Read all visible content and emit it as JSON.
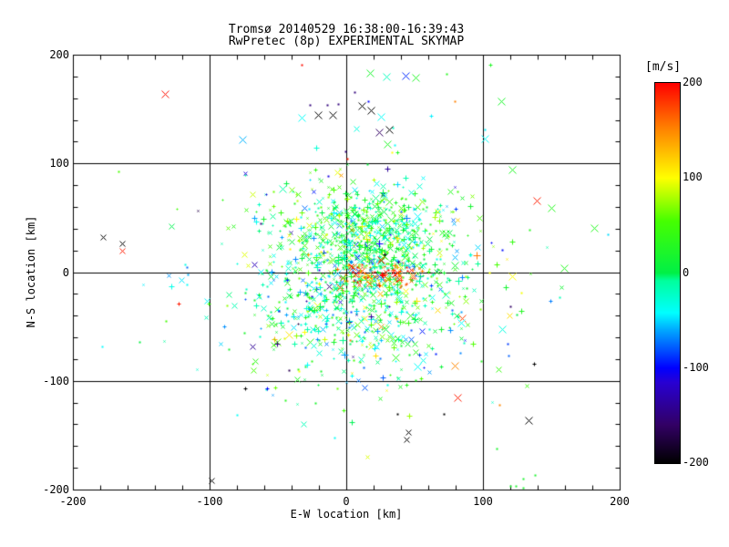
{
  "chart_data": {
    "type": "scatter",
    "title": "Tromsø 20140529 16:38:00-16:39:43",
    "subtitle": "RwPretec (8p) EXPERIMENTAL SKYMAP",
    "xlabel": "E-W location [km]",
    "ylabel": "N-S location [km]",
    "xlim": [
      -200,
      200
    ],
    "ylim": [
      -200,
      200
    ],
    "xticks": [
      "-200",
      "-100",
      "0",
      "100",
      "200"
    ],
    "yticks": [
      "200",
      "100",
      "0",
      "-100",
      "-200"
    ],
    "xtick_values": [
      -200,
      -100,
      0,
      100,
      200
    ],
    "ytick_values": [
      200,
      100,
      0,
      -100,
      -200
    ],
    "minor_tick_step": 20,
    "grid": true,
    "gridlines_at": [
      -100,
      0,
      100
    ],
    "frame_color": "#000000",
    "background_color": "#ffffff",
    "colorbar": {
      "label": "[m/s]",
      "tick_labels": [
        "200",
        "100",
        "0",
        "-100",
        "-200"
      ],
      "tick_values": [
        200,
        100,
        0,
        -100,
        -200
      ],
      "min": -200,
      "max": 200,
      "stops": [
        {
          "v": -200,
          "color": "#000000"
        },
        {
          "v": -160,
          "color": "#320064"
        },
        {
          "v": -115,
          "color": "#2800d2"
        },
        {
          "v": -100,
          "color": "#0000ff"
        },
        {
          "v": -60,
          "color": "#00a8ff"
        },
        {
          "v": -42,
          "color": "#00ffff"
        },
        {
          "v": -8,
          "color": "#00ff9c"
        },
        {
          "v": 0,
          "color": "#00f046"
        },
        {
          "v": 55,
          "color": "#46ff00"
        },
        {
          "v": 100,
          "color": "#ffff00"
        },
        {
          "v": 152,
          "color": "#ff8200"
        },
        {
          "v": 200,
          "color": "#ff0000"
        }
      ]
    },
    "point_cloud": {
      "note": "dense echo cluster synthesized from gaussian cluster parameters, units km / m-s",
      "seed": 20140529,
      "clusters": [
        {
          "n": 650,
          "cx": 15,
          "cy": 18,
          "sx": 30,
          "sy": 26,
          "vmean": 10,
          "vsd": 45
        },
        {
          "n": 420,
          "cx": 8,
          "cy": -12,
          "sx": 55,
          "sy": 45,
          "vmean": 0,
          "vsd": 55
        },
        {
          "n": 260,
          "cx": 12,
          "cy": -42,
          "sx": 32,
          "sy": 26,
          "vmean": -5,
          "vsd": 50
        },
        {
          "n": 90,
          "cx": 25,
          "cy": -2,
          "sx": 16,
          "sy": 7,
          "vmean": 170,
          "vsd": 35
        },
        {
          "n": 150,
          "cx": 12,
          "cy": 52,
          "sx": 24,
          "sy": 16,
          "vmean": 15,
          "vsd": 35
        },
        {
          "n": 90,
          "cx": -5,
          "cy": 0,
          "sx": 85,
          "sy": 65,
          "vmean": 0,
          "vsd": 75
        }
      ],
      "outliers": [
        [
          -133,
          164,
          195,
          4,
          "x"
        ],
        [
          -33,
          191,
          195,
          1,
          "."
        ],
        [
          -33,
          142,
          -40,
          4,
          "x"
        ],
        [
          -21,
          145,
          -200,
          4,
          "x"
        ],
        [
          -10,
          145,
          -200,
          4,
          "x"
        ],
        [
          -14,
          154,
          -150,
          1,
          "."
        ],
        [
          -27,
          154,
          -150,
          1,
          "."
        ],
        [
          17,
          183,
          20,
          4,
          "x"
        ],
        [
          29,
          180,
          -20,
          4,
          "x"
        ],
        [
          43,
          181,
          -90,
          4,
          "x"
        ],
        [
          51,
          179,
          25,
          4,
          "x"
        ],
        [
          73,
          182,
          30,
          1,
          "."
        ],
        [
          6,
          166,
          -150,
          1,
          "."
        ],
        [
          -6,
          155,
          -150,
          1,
          "."
        ],
        [
          16,
          157,
          -100,
          1,
          "."
        ],
        [
          11,
          153,
          -200,
          4,
          "x"
        ],
        [
          18,
          149,
          -200,
          4,
          "x"
        ],
        [
          25,
          143,
          -40,
          4,
          "x"
        ],
        [
          24,
          129,
          -160,
          4,
          "x"
        ],
        [
          31,
          131,
          -200,
          4,
          "x"
        ],
        [
          30,
          118,
          25,
          4,
          "x"
        ],
        [
          35,
          117,
          -40,
          1,
          "."
        ],
        [
          33,
          110,
          100,
          1,
          "."
        ],
        [
          37,
          110,
          25,
          2,
          "+"
        ],
        [
          62,
          144,
          -45,
          2,
          "+"
        ],
        [
          105,
          191,
          25,
          2,
          "+"
        ],
        [
          101,
          131,
          -45,
          1,
          "."
        ],
        [
          101,
          123,
          -40,
          4,
          "x"
        ],
        [
          1,
          104,
          190,
          1,
          "."
        ],
        [
          -1,
          111,
          -150,
          1,
          "."
        ],
        [
          -178,
          32,
          -200,
          3,
          "x"
        ],
        [
          -164,
          26,
          -200,
          3,
          "x"
        ],
        [
          -164,
          20,
          190,
          3,
          "x"
        ],
        [
          -123,
          -29,
          190,
          2,
          "+"
        ],
        [
          139,
          66,
          190,
          4,
          "x"
        ],
        [
          150,
          59,
          30,
          4,
          "x"
        ],
        [
          134,
          39,
          30,
          1,
          "."
        ],
        [
          181,
          41,
          30,
          4,
          "x"
        ],
        [
          159,
          4,
          30,
          4,
          "x"
        ],
        [
          121,
          -4,
          100,
          4,
          "x"
        ],
        [
          52,
          -87,
          -40,
          4,
          "x"
        ],
        [
          79,
          -86,
          150,
          4,
          "x"
        ],
        [
          137,
          -84,
          -200,
          2,
          "+"
        ],
        [
          81,
          -115,
          190,
          4,
          "x"
        ],
        [
          112,
          -122,
          150,
          1,
          "."
        ],
        [
          37,
          -130,
          -200,
          1,
          "."
        ],
        [
          71,
          -130,
          -200,
          1,
          "."
        ],
        [
          133,
          -136,
          -200,
          4,
          "x"
        ],
        [
          45,
          -147,
          -200,
          3,
          "x"
        ],
        [
          44,
          -154,
          -200,
          3,
          "x"
        ],
        [
          110,
          -162,
          20,
          1,
          "."
        ],
        [
          138,
          -187,
          20,
          1,
          "."
        ],
        [
          129,
          -190,
          20,
          1,
          "."
        ],
        [
          120,
          -197,
          20,
          1,
          "."
        ],
        [
          124,
          -197,
          20,
          1,
          "."
        ],
        [
          129,
          -198,
          20,
          1,
          "."
        ],
        [
          -35,
          -91,
          100,
          1,
          "."
        ],
        [
          -19,
          -91,
          20,
          1,
          "."
        ],
        [
          -74,
          -107,
          -200,
          2,
          "+"
        ],
        [
          -58,
          -107,
          -100,
          2,
          "+"
        ],
        [
          -23,
          -120,
          20,
          1,
          "."
        ],
        [
          -80,
          -131,
          -40,
          1,
          "."
        ],
        [
          -9,
          -152,
          -40,
          1,
          "."
        ],
        [
          -99,
          -192,
          -200,
          3,
          "x"
        ],
        [
          -86,
          -71,
          20,
          1,
          "."
        ]
      ]
    }
  }
}
